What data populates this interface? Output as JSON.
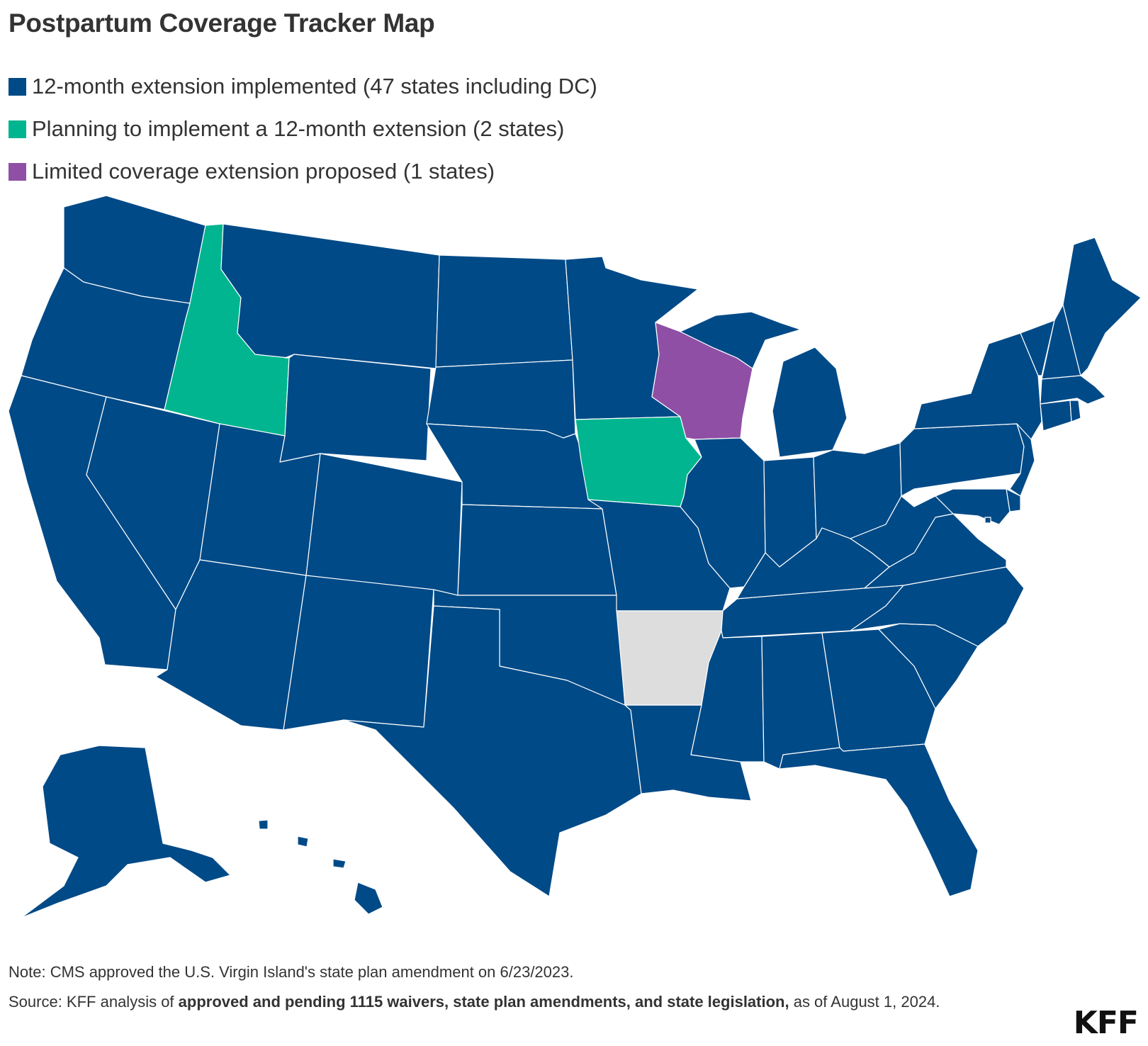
{
  "title": "Postpartum Coverage Tracker Map",
  "colors": {
    "implemented": "#004A87",
    "planning": "#00B58F",
    "limited": "#8F4FA5",
    "none": "#DDDDDD",
    "border": "#FFFFFF"
  },
  "legend": [
    {
      "label": "12-month extension implemented (47 states including DC)",
      "color": "#004A87"
    },
    {
      "label": "Planning to implement a 12-month extension (2 states)",
      "color": "#00B58F"
    },
    {
      "label": "Limited coverage extension proposed (1 states)",
      "color": "#8F4FA5"
    }
  ],
  "map": {
    "status_by_state": {
      "ID": "planning",
      "IA": "planning",
      "WI": "limited",
      "AR": "none"
    },
    "default_status": "implemented"
  },
  "note": "Note: CMS approved the U.S. Virgin Island's state plan amendment on 6/23/2023.",
  "source": {
    "prefix": "Source: KFF analysis of ",
    "bold": "approved and pending 1115 waivers, state plan amendments, and state legislation,",
    "suffix": " as of August 1, 2024."
  },
  "logo": "KFF"
}
